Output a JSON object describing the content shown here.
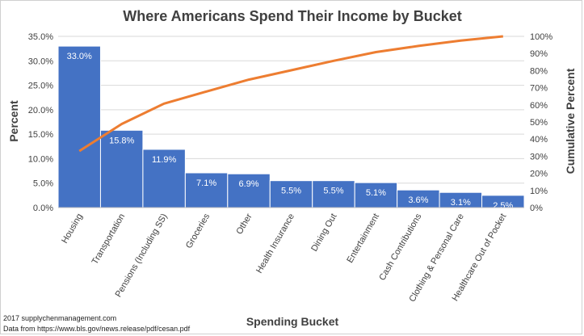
{
  "chart_data": {
    "type": "bar",
    "title": "Where Americans Spend Their Income by Bucket",
    "xlabel": "Spending Bucket",
    "ylabel": "Percent",
    "y2label": "Cumulative Percent",
    "ylim": [
      0,
      35
    ],
    "y2lim": [
      0,
      100
    ],
    "yticks": [
      "0.0%",
      "5.0%",
      "10.0%",
      "15.0%",
      "20.0%",
      "25.0%",
      "30.0%",
      "35.0%"
    ],
    "y2ticks": [
      "0%",
      "10%",
      "20%",
      "30%",
      "40%",
      "50%",
      "60%",
      "70%",
      "80%",
      "90%",
      "100%"
    ],
    "categories": [
      "Housing",
      "Transportation",
      "Pensions (Including SS)",
      "Groceries",
      "Other",
      "Health Insurance",
      "Dining Out",
      "Entertainment",
      "Cash Contributions",
      "Clothing & Personal Care",
      "Healthcare Out of Pocket"
    ],
    "series": [
      {
        "name": "Percent",
        "type": "bar",
        "values": [
          33.0,
          15.8,
          11.9,
          7.1,
          6.9,
          5.5,
          5.5,
          5.1,
          3.6,
          3.1,
          2.5
        ],
        "labels": [
          "33.0%",
          "15.8%",
          "11.9%",
          "7.1%",
          "6.9%",
          "5.5%",
          "5.5%",
          "5.1%",
          "3.6%",
          "3.1%",
          "2.5%"
        ],
        "color": "#4472c4"
      },
      {
        "name": "Cumulative Percent",
        "type": "line",
        "axis": "secondary",
        "values": [
          33.0,
          48.8,
          60.7,
          67.8,
          74.7,
          80.2,
          85.7,
          90.8,
          94.4,
          97.5,
          100.0
        ],
        "color": "#ed7d31"
      }
    ],
    "grid": true,
    "legend": "none"
  },
  "footnotes": {
    "line1": "2017 supplychenmanagement.com",
    "line2": "Data from https://www.bls.gov/news.release/pdf/cesan.pdf"
  }
}
